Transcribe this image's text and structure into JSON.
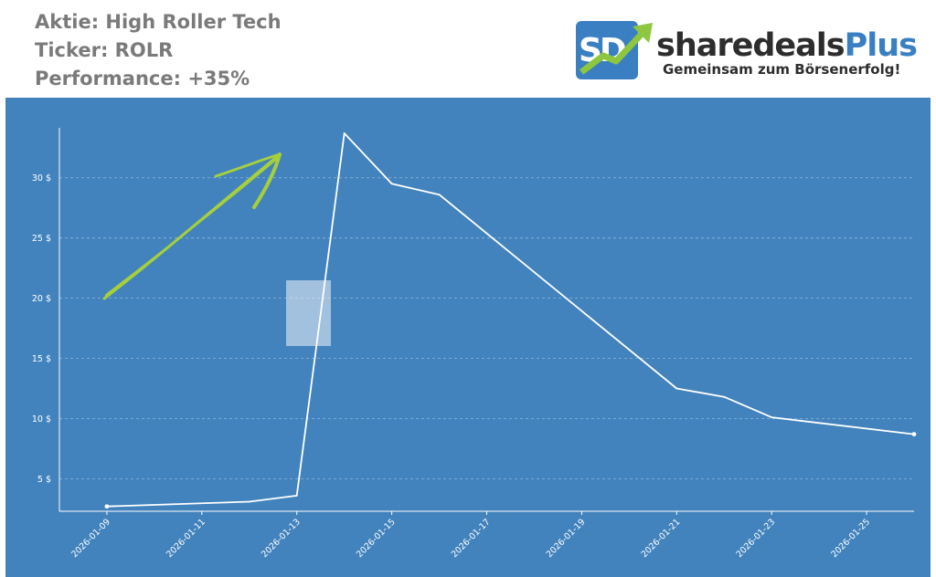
{
  "header": {
    "stock_line": "Aktie: High Roller Tech",
    "ticker_line": "Ticker: ROLR",
    "performance_line": "Performance: +35%"
  },
  "logo": {
    "icon_text": "SD",
    "brand_main": "sharedeals",
    "brand_plus": "Plus",
    "tagline": "Gemeinsam zum Börsenerfolg!",
    "brand_color": "#3a7fc1",
    "arrow_color": "#8dc63f"
  },
  "colors": {
    "plot_background": "#4283bd",
    "line": "#ffffff",
    "annotation_arrow": "#a6cf3c"
  },
  "chart_data": {
    "type": "line",
    "title": "",
    "xlabel": "",
    "ylabel": "",
    "grid": "horizontal dashed",
    "x_ticks": [
      "2026-01-09",
      "2026-01-11",
      "2026-01-13",
      "2026-01-15",
      "2026-01-17",
      "2026-01-19",
      "2026-01-21",
      "2026-01-23",
      "2026-01-25"
    ],
    "y_ticks": [
      5,
      10,
      15,
      20,
      25,
      30
    ],
    "y_tick_labels": [
      "5 $",
      "10 $",
      "15 $",
      "20 $",
      "25 $",
      "30 $"
    ],
    "xlim": [
      "2026-01-08",
      "2026-01-26"
    ],
    "ylim": [
      2.3,
      34
    ],
    "series": [
      {
        "x": [
          "2026-01-09",
          "2026-01-12",
          "2026-01-13",
          "2026-01-14",
          "2026-01-15",
          "2026-01-16",
          "2026-01-21",
          "2026-01-22",
          "2026-01-23",
          "2026-01-26"
        ],
        "y": [
          2.7,
          3.1,
          3.6,
          33.7,
          29.5,
          28.6,
          12.5,
          11.8,
          10.1,
          8.7
        ]
      }
    ]
  }
}
